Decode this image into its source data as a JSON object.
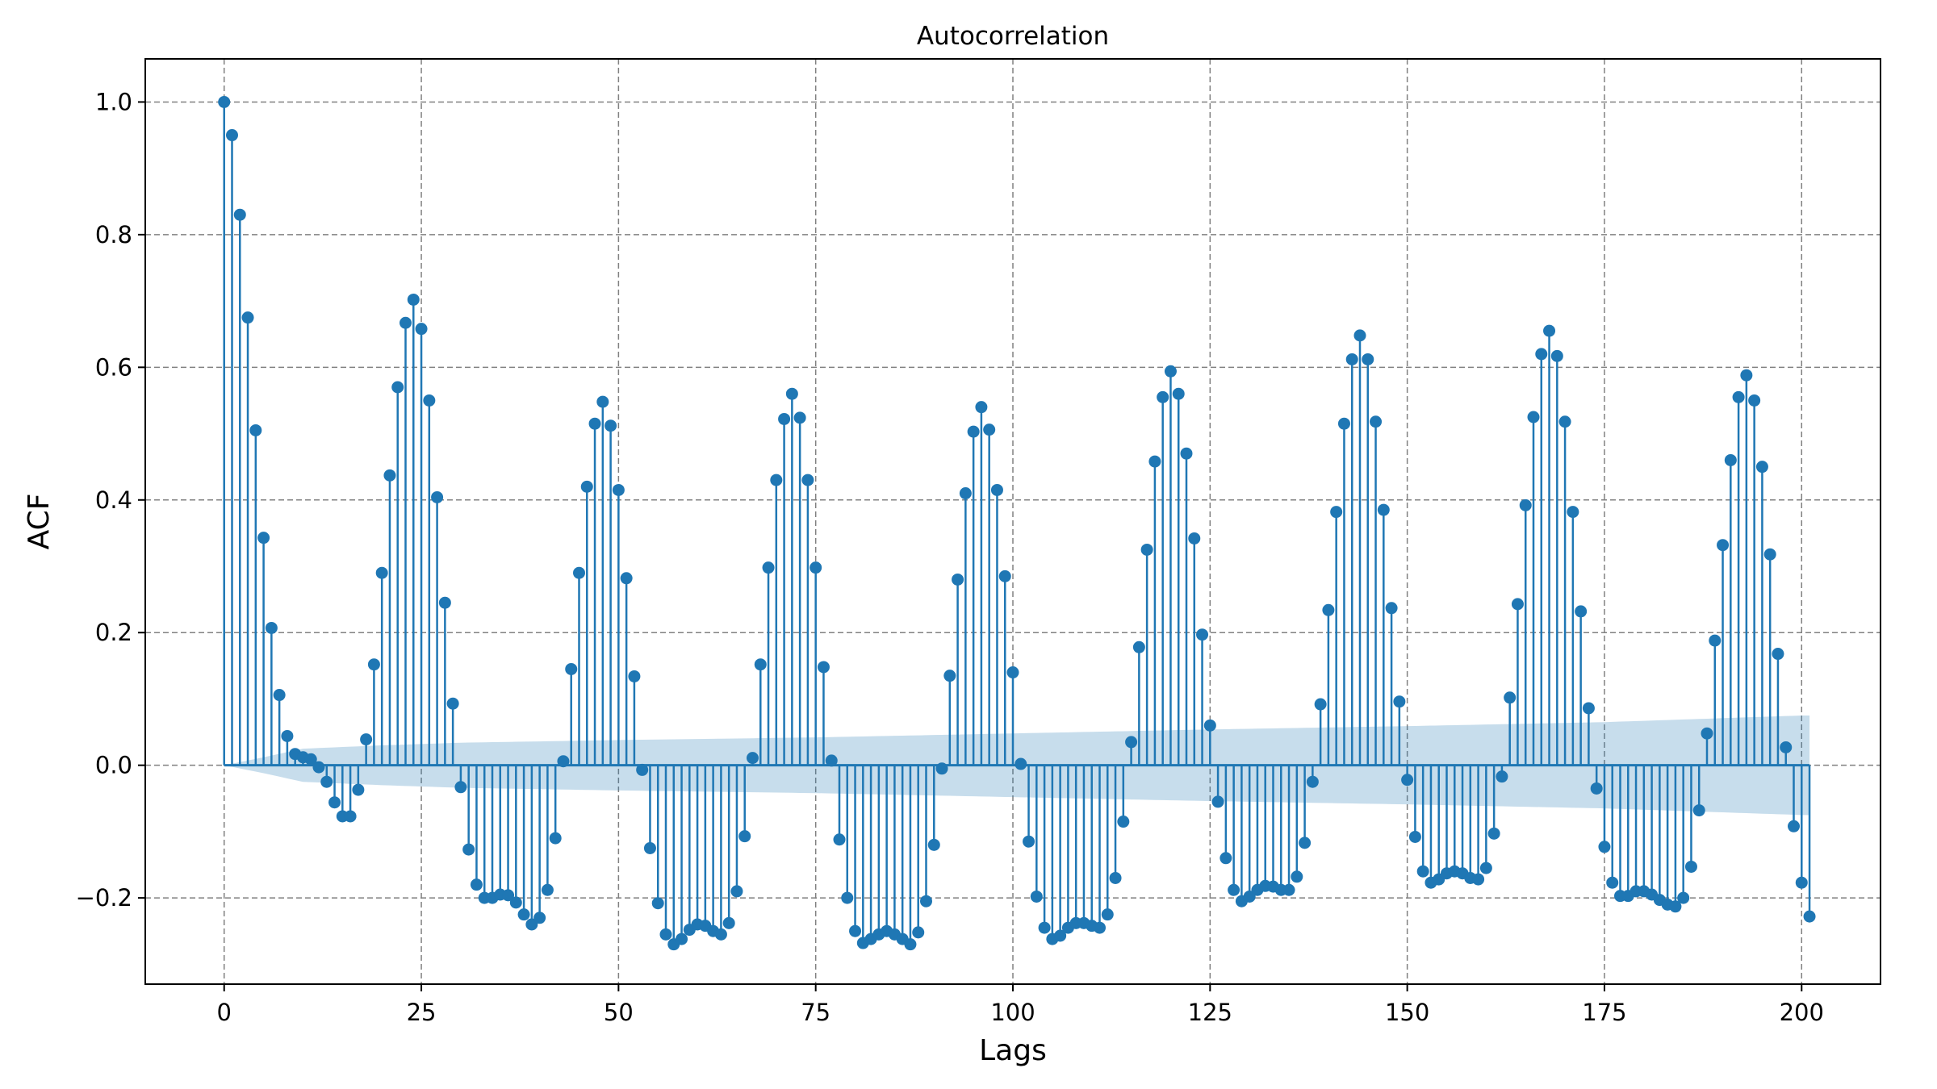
{
  "chart_data": {
    "type": "stem",
    "title": "Autocorrelation",
    "xlabel": "Lags",
    "ylabel": "ACF",
    "xlim": [
      -10,
      210
    ],
    "ylim": [
      -0.33,
      1.065
    ],
    "xticks": [
      0,
      25,
      50,
      75,
      100,
      125,
      150,
      175,
      200
    ],
    "xtick_labels": [
      "0",
      "25",
      "50",
      "75",
      "100",
      "125",
      "150",
      "175",
      "200"
    ],
    "yticks": [
      -0.2,
      0.0,
      0.2,
      0.4,
      0.6,
      0.8,
      1.0
    ],
    "ytick_labels": [
      "−0.2",
      "0.0",
      "0.2",
      "0.4",
      "0.6",
      "0.8",
      "1.0"
    ],
    "grid": true,
    "colors": {
      "stem": "#1f77b4",
      "band": "#1f77b4",
      "grid": "#808080"
    },
    "lags_start": 0,
    "acf": [
      1.0,
      0.95,
      0.83,
      0.675,
      0.505,
      0.343,
      0.207,
      0.106,
      0.044,
      0.017,
      0.012,
      0.009,
      -0.003,
      -0.025,
      -0.056,
      -0.077,
      -0.077,
      -0.037,
      0.039,
      0.152,
      0.29,
      0.437,
      0.57,
      0.667,
      0.702,
      0.658,
      0.55,
      0.404,
      0.245,
      0.093,
      -0.033,
      -0.127,
      -0.18,
      -0.2,
      -0.2,
      -0.195,
      -0.196,
      -0.207,
      -0.225,
      -0.24,
      -0.23,
      -0.188,
      -0.11,
      0.006,
      0.145,
      0.29,
      0.42,
      0.515,
      0.548,
      0.512,
      0.415,
      0.282,
      0.134,
      -0.007,
      -0.125,
      -0.208,
      -0.255,
      -0.27,
      -0.262,
      -0.248,
      -0.24,
      -0.242,
      -0.25,
      -0.255,
      -0.238,
      -0.19,
      -0.107,
      0.011,
      0.152,
      0.298,
      0.43,
      0.522,
      0.56,
      0.524,
      0.43,
      0.298,
      0.148,
      0.007,
      -0.112,
      -0.2,
      -0.25,
      -0.268,
      -0.262,
      -0.255,
      -0.25,
      -0.255,
      -0.262,
      -0.27,
      -0.252,
      -0.205,
      -0.12,
      -0.005,
      0.135,
      0.28,
      0.41,
      0.503,
      0.54,
      0.506,
      0.415,
      0.285,
      0.14,
      0.002,
      -0.115,
      -0.198,
      -0.245,
      -0.262,
      -0.257,
      -0.245,
      -0.238,
      -0.238,
      -0.242,
      -0.245,
      -0.225,
      -0.17,
      -0.085,
      0.035,
      0.178,
      0.325,
      0.458,
      0.555,
      0.594,
      0.56,
      0.47,
      0.342,
      0.197,
      0.06,
      -0.055,
      -0.14,
      -0.188,
      -0.205,
      -0.198,
      -0.188,
      -0.182,
      -0.183,
      -0.188,
      -0.188,
      -0.168,
      -0.117,
      -0.025,
      0.092,
      0.234,
      0.382,
      0.515,
      0.612,
      0.648,
      0.612,
      0.518,
      0.385,
      0.237,
      0.096,
      -0.022,
      -0.108,
      -0.16,
      -0.177,
      -0.172,
      -0.163,
      -0.16,
      -0.163,
      -0.17,
      -0.172,
      -0.155,
      -0.103,
      -0.017,
      0.102,
      0.243,
      0.392,
      0.525,
      0.62,
      0.655,
      0.617,
      0.518,
      0.382,
      0.232,
      0.086,
      -0.035,
      -0.123,
      -0.177,
      -0.197,
      -0.197,
      -0.19,
      -0.19,
      -0.195,
      -0.203,
      -0.21,
      -0.213,
      -0.2,
      -0.153,
      -0.068,
      0.048,
      0.188,
      0.332,
      0.46,
      0.555,
      0.588,
      0.55,
      0.45,
      0.318,
      0.168,
      0.027,
      -0.092,
      -0.177,
      -0.228
    ],
    "confidence_band": {
      "lags": [
        0,
        5,
        10,
        20,
        30,
        50,
        75,
        100,
        125,
        150,
        175,
        200
      ],
      "upper": [
        0.0,
        0.012,
        0.025,
        0.03,
        0.034,
        0.038,
        0.042,
        0.048,
        0.054,
        0.059,
        0.065,
        0.075
      ],
      "lower": [
        0.0,
        -0.012,
        -0.025,
        -0.03,
        -0.034,
        -0.038,
        -0.042,
        -0.048,
        -0.054,
        -0.059,
        -0.065,
        -0.075
      ]
    }
  }
}
